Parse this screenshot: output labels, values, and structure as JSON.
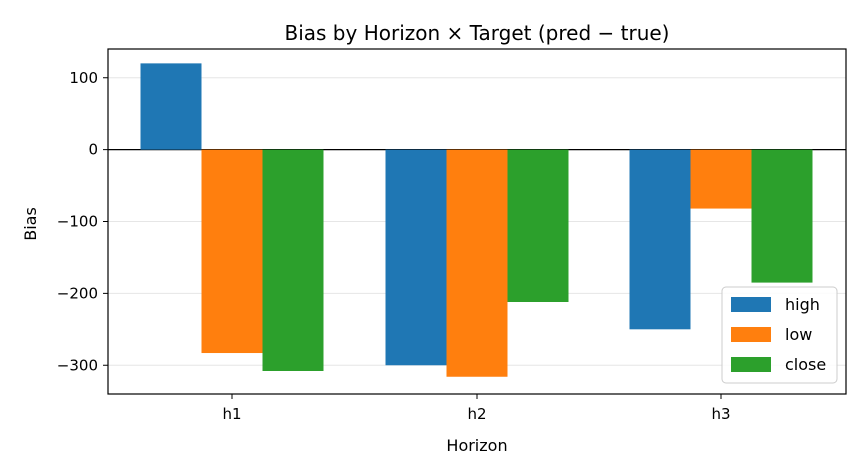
{
  "chart_data": {
    "type": "bar",
    "title": "Bias by Horizon × Target (pred − true)",
    "xlabel": "Horizon",
    "ylabel": "Bias",
    "categories": [
      "h1",
      "h2",
      "h3"
    ],
    "series": [
      {
        "name": "high",
        "color": "#1f77b4",
        "values": [
          120,
          -300,
          -250
        ]
      },
      {
        "name": "low",
        "color": "#ff7f0e",
        "values": [
          -283,
          -316,
          -82
        ]
      },
      {
        "name": "close",
        "color": "#2ca02c",
        "values": [
          -308,
          -212,
          -185
        ]
      }
    ],
    "ylim": [
      -340,
      140
    ],
    "yticks": [
      100,
      0,
      -100,
      -200,
      -300
    ],
    "ytick_labels": [
      "100",
      "0",
      "−100",
      "−200",
      "−300"
    ],
    "grid": "horizontal",
    "zero_line": true,
    "legend_position": "lower-right"
  }
}
